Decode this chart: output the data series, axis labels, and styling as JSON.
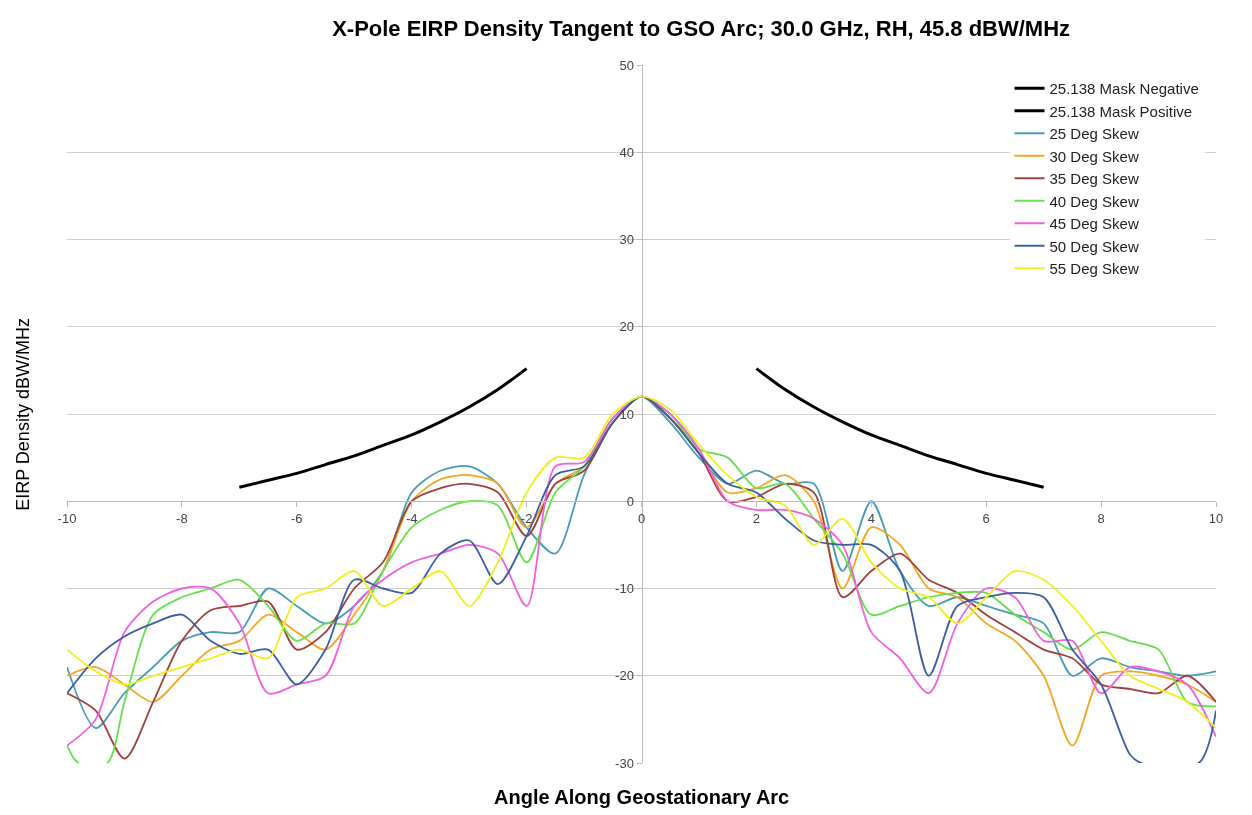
{
  "chart_data": {
    "type": "line",
    "title": "X-Pole EIRP Density Tangent to GSO Arc; 30.0 GHz, RH, 45.8 dBW/MHz",
    "xlabel": "Angle Along Geostationary Arc",
    "ylabel": "EIRP Density dBW/MHz",
    "x": [
      -10,
      -9.5,
      -9,
      -8.5,
      -8,
      -7.5,
      -7,
      -6.5,
      -6,
      -5.5,
      -5,
      -4.5,
      -4,
      -3.5,
      -3,
      -2.5,
      -2,
      -1.5,
      -1,
      -0.5,
      0,
      0.5,
      1,
      1.5,
      2,
      2.5,
      3,
      3.5,
      4,
      4.5,
      5,
      5.5,
      6,
      6.5,
      7,
      7.5,
      8,
      8.5,
      9,
      9.5,
      10
    ],
    "xlim": [
      -10,
      10
    ],
    "xticks": [
      -10,
      -8,
      -6,
      -4,
      -2,
      0,
      2,
      4,
      6,
      8,
      10
    ],
    "ylim": [
      -30,
      50
    ],
    "yticks": [
      -30,
      -20,
      -10,
      0,
      10,
      20,
      30,
      40,
      50
    ],
    "grid": "y",
    "legend": "top right",
    "marker": "none",
    "line_style": "solid",
    "series": [
      {
        "name": "25.138 Mask Negative",
        "color": "#000000",
        "x": [
          -7,
          -6.5,
          -6,
          -5.5,
          -5,
          -4.5,
          -4,
          -3.5,
          -3,
          -2.5,
          -2
        ],
        "values": [
          1.6,
          2.4,
          3.2,
          4.2,
          5.2,
          6.4,
          7.6,
          9.1,
          10.8,
          12.8,
          15.2
        ]
      },
      {
        "name": "25.138 Mask Positive",
        "color": "#000000",
        "x": [
          2,
          2.5,
          3,
          3.5,
          4,
          4.5,
          5,
          5.5,
          6,
          6.5,
          7
        ],
        "values": [
          15.2,
          12.8,
          10.8,
          9.1,
          7.6,
          6.4,
          5.2,
          4.2,
          3.2,
          2.4,
          1.6
        ]
      },
      {
        "name": "25 Deg Skew",
        "color": "#4a9bb5",
        "values": [
          -19,
          -26,
          -22,
          -19,
          -16,
          -15,
          -15,
          -10,
          -12,
          -14,
          -12,
          -8,
          1,
          3.5,
          4,
          2,
          -3,
          -6,
          3,
          9,
          12,
          9,
          5,
          2,
          3.5,
          2,
          2,
          -8,
          0,
          -8,
          -12,
          -11,
          -12,
          -13,
          -14,
          -20,
          -18,
          -19,
          -19.5,
          -20,
          -19.5
        ]
      },
      {
        "name": "30 Deg Skew",
        "color": "#f5a623",
        "values": [
          -20,
          -19,
          -21,
          -23,
          -20,
          -17,
          -16,
          -13,
          -15,
          -17,
          -13,
          -8,
          0,
          2.5,
          3,
          2,
          -3,
          2,
          4,
          9,
          12,
          9.5,
          5.5,
          1,
          1.5,
          3,
          0,
          -10,
          -3,
          -5,
          -10,
          -11,
          -14,
          -16,
          -20,
          -28,
          -20,
          -19.5,
          -20,
          -21,
          -23
        ]
      },
      {
        "name": "35 Deg Skew",
        "color": "#a0413c",
        "values": [
          -22,
          -24,
          -29.5,
          -23,
          -16,
          -12.5,
          -12,
          -11.5,
          -17,
          -15,
          -10,
          -7,
          0,
          1.5,
          2,
          1,
          -4,
          2,
          3.5,
          9,
          12,
          9.5,
          5.5,
          0,
          0.5,
          2,
          1,
          -11,
          -8,
          -6,
          -9,
          -10.5,
          -13,
          -15,
          -17,
          -18,
          -21,
          -21.5,
          -22,
          -20,
          -23
        ]
      },
      {
        "name": "40 Deg Skew",
        "color": "#66e04a",
        "x": [
          -10,
          -9.8,
          -9.3,
          -9,
          -8.5,
          -8,
          -7.5,
          -7,
          -6.5,
          -6,
          -5.5,
          -5,
          -4.5,
          -4,
          -3.5,
          -3,
          -2.5,
          -2,
          -1.5,
          -1,
          -0.5,
          0,
          0.5,
          1,
          1.5,
          2,
          2.5,
          3,
          3.5,
          4,
          4.5,
          5,
          5.5,
          6,
          6.5,
          7,
          7.5,
          8,
          8.5,
          9,
          9.5,
          10
        ],
        "values": [
          -28,
          -30,
          -30,
          -23,
          -13,
          -11,
          -10,
          -9,
          -12,
          -16,
          -14,
          -14,
          -8,
          -3,
          -1,
          0,
          -0.5,
          -7,
          1,
          4,
          9.5,
          12,
          10,
          6,
          5,
          1.5,
          2,
          -2,
          -6,
          -13,
          -12,
          -11,
          -10.5,
          -10.5,
          -13,
          -15,
          -17,
          -15,
          -16,
          -17,
          -23,
          -23.5
        ]
      },
      {
        "name": "45 Deg Skew",
        "color": "#f060e0",
        "values": [
          -28,
          -25,
          -15,
          -11.5,
          -10,
          -10,
          -14,
          -22,
          -21,
          -20,
          -12,
          -9,
          -7,
          -6,
          -5,
          -6,
          -12,
          4,
          4.5,
          9.5,
          12,
          10,
          6,
          0,
          -1,
          -1,
          -2,
          -5,
          -15,
          -18,
          -22,
          -14,
          -10,
          -11,
          -16,
          -16,
          -22,
          -19,
          -19.5,
          -21,
          -27
        ]
      },
      {
        "name": "50 Deg Skew",
        "color": "#3c5fa0",
        "x": [
          -10,
          -9.5,
          -9,
          -8.5,
          -8,
          -7.5,
          -7,
          -6.5,
          -6,
          -5.5,
          -5,
          -4.5,
          -4,
          -3.5,
          -3,
          -2.5,
          -2,
          -1.5,
          -1,
          -0.5,
          0,
          0.5,
          1,
          1.5,
          2,
          2.5,
          3,
          3.5,
          4,
          4.5,
          5,
          5.5,
          6,
          6.5,
          7,
          7.5,
          8,
          8.5,
          8.7,
          9.7,
          10
        ],
        "values": [
          -22,
          -18,
          -15.5,
          -14,
          -13,
          -16,
          -17.5,
          -17,
          -21,
          -17,
          -9,
          -10,
          -10.5,
          -6,
          -4.5,
          -9.5,
          -4,
          3,
          4,
          9,
          12,
          9.5,
          5.5,
          2,
          1,
          -2,
          -4.5,
          -5,
          -5,
          -8,
          -20,
          -12,
          -11,
          -10.5,
          -11,
          -17,
          -21,
          -29,
          -30,
          -30,
          -24
        ]
      },
      {
        "name": "55 Deg Skew",
        "color": "#eef020",
        "values": [
          -17,
          -19.5,
          -21,
          -20,
          -19,
          -18,
          -17,
          -18,
          -11,
          -10,
          -8,
          -12,
          -10,
          -8,
          -12,
          -7,
          1,
          5,
          5,
          10,
          12,
          10.5,
          6.5,
          3,
          0.5,
          -0.5,
          -5,
          -2,
          -7,
          -10,
          -11,
          -14,
          -11,
          -8,
          -9,
          -12,
          -16,
          -20,
          -21.5,
          -23,
          -26
        ]
      }
    ]
  }
}
